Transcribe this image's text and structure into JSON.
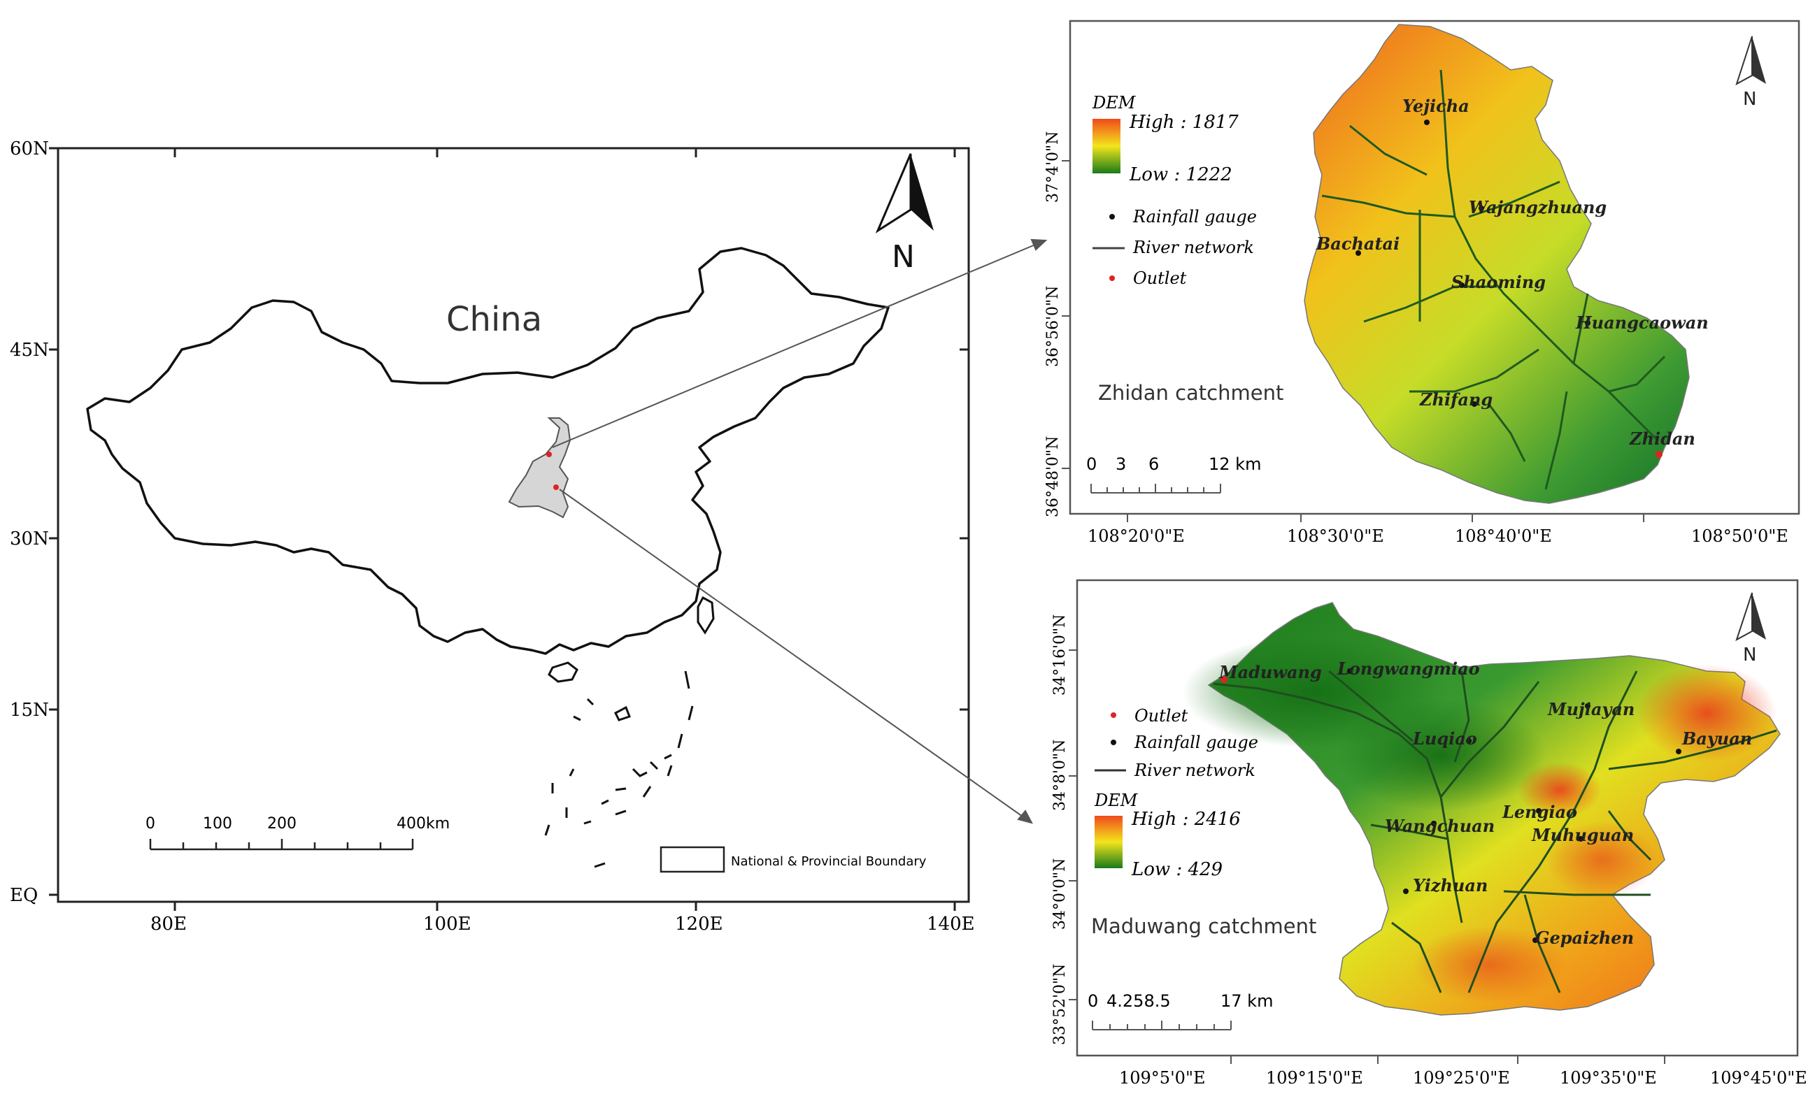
{
  "china_map": {
    "title": "China",
    "lat_labels": [
      "60N",
      "45N",
      "30N",
      "15N",
      "EQ"
    ],
    "lon_labels": [
      "80E",
      "100E",
      "120E",
      "140E"
    ],
    "scale_labels": [
      "0",
      "100",
      "200",
      "400km"
    ],
    "legend_label": "National & Provincial Boundary",
    "north": "N"
  },
  "zhidan": {
    "caption": "Zhidan catchment",
    "legend_title": "DEM",
    "high_label": "High : 1817",
    "low_label": "Low : 1222",
    "legend_items": [
      "Rainfall gauge",
      "River network",
      "Outlet"
    ],
    "stations": [
      "Yejicha",
      "Wajangzhuang",
      "Bachatai",
      "Shaoming",
      "Huangcaowan",
      "Zhifang",
      "Zhidan"
    ],
    "scale_labels": [
      "0",
      "3",
      "6",
      "12 km"
    ],
    "lat_labels": [
      "37°4'0\"N",
      "36°56'0\"N",
      "36°48'0\"N"
    ],
    "lon_labels": [
      "108°20'0\"E",
      "108°30'0\"E",
      "108°40'0\"E",
      "108°50'0\"E"
    ],
    "north": "N"
  },
  "maduwang": {
    "caption": "Maduwang catchment",
    "legend_title": "DEM",
    "high_label": "High : 2416",
    "low_label": "Low : 429",
    "legend_items": [
      "Outlet",
      "Rainfall gauge",
      "River network"
    ],
    "stations": [
      "Maduwang",
      "Longwangmiao",
      "Mujiayan",
      "Bayuan",
      "Luqiao",
      "Lengiao",
      "Wangchuan",
      "Muhuguan",
      "Yizhuan",
      "Gepaizhen"
    ],
    "scale_labels": [
      "0",
      "4.258.5",
      "17 km"
    ],
    "lat_labels": [
      "34°16'0\"N",
      "34°8'0\"N",
      "34°0'0\"N",
      "33°52'0\"N"
    ],
    "lon_labels": [
      "109°5'0\"E",
      "109°15'0\"E",
      "109°25'0\"E",
      "109°35'0\"E",
      "109°45'0\"E"
    ],
    "north": "N"
  },
  "colors": {
    "high": "#e8411f",
    "mid": "#f2e21a",
    "low": "#1d7a1d",
    "outlet": "#e22222",
    "province": "#d6d6d6"
  }
}
